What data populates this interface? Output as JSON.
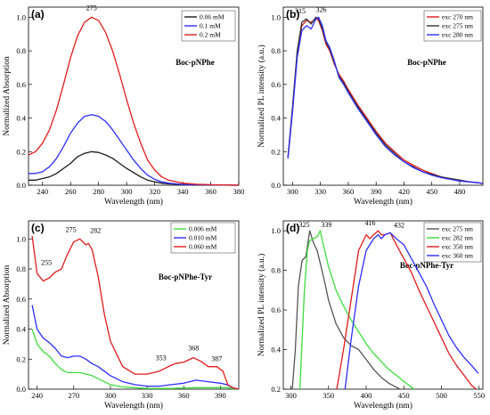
{
  "colors": {
    "black": "#1a1a1a",
    "blue": "#2d2dff",
    "red": "#e21b1b",
    "green": "#3ddc3d",
    "gray": "#555555"
  },
  "chart_data": [
    {
      "id": "a",
      "type": "line",
      "letter": "(a)",
      "sample": "Boc-pNPhe",
      "xlabel": "Wavelength (nm)",
      "ylabel": "Normalized Absorption",
      "xlim": [
        230,
        380
      ],
      "ylim": [
        0,
        1.06
      ],
      "xticks": [
        240,
        260,
        280,
        300,
        320,
        340,
        360,
        380
      ],
      "yticks": [
        0.0,
        0.2,
        0.4,
        0.6,
        0.8,
        1.0
      ],
      "legend_position": "top-right",
      "annotations": [
        {
          "text": "275",
          "x": 275,
          "y": 1.0
        }
      ],
      "series": [
        {
          "name": "0.06 mM",
          "color": "#1a1a1a",
          "x": [
            230,
            235,
            240,
            245,
            250,
            255,
            260,
            265,
            270,
            275,
            280,
            285,
            290,
            295,
            300,
            305,
            310,
            315,
            320,
            325,
            330,
            340,
            350,
            360,
            370,
            380
          ],
          "y": [
            0.03,
            0.03,
            0.04,
            0.05,
            0.07,
            0.1,
            0.13,
            0.17,
            0.19,
            0.2,
            0.195,
            0.18,
            0.16,
            0.13,
            0.1,
            0.075,
            0.05,
            0.03,
            0.02,
            0.012,
            0.008,
            0.004,
            0.002,
            0.001,
            0.001,
            0.0
          ]
        },
        {
          "name": "0.1 mM",
          "color": "#2d2dff",
          "x": [
            230,
            235,
            240,
            245,
            250,
            255,
            260,
            265,
            270,
            275,
            280,
            285,
            290,
            295,
            300,
            305,
            310,
            315,
            320,
            325,
            330,
            340,
            350,
            360,
            370,
            380
          ],
          "y": [
            0.07,
            0.07,
            0.08,
            0.11,
            0.16,
            0.23,
            0.31,
            0.37,
            0.41,
            0.42,
            0.41,
            0.38,
            0.33,
            0.27,
            0.21,
            0.15,
            0.1,
            0.06,
            0.035,
            0.02,
            0.012,
            0.005,
            0.003,
            0.002,
            0.001,
            0.0
          ]
        },
        {
          "name": "0.2 mM",
          "color": "#e21b1b",
          "x": [
            230,
            235,
            240,
            245,
            250,
            255,
            260,
            265,
            270,
            275,
            280,
            285,
            290,
            295,
            300,
            305,
            310,
            315,
            320,
            325,
            330,
            340,
            350,
            360,
            370,
            380
          ],
          "y": [
            0.18,
            0.2,
            0.25,
            0.33,
            0.45,
            0.6,
            0.76,
            0.89,
            0.97,
            1.0,
            0.98,
            0.91,
            0.8,
            0.66,
            0.51,
            0.37,
            0.25,
            0.15,
            0.09,
            0.05,
            0.03,
            0.012,
            0.006,
            0.003,
            0.001,
            0.0
          ]
        }
      ]
    },
    {
      "id": "b",
      "type": "line",
      "letter": "(b)",
      "sample": "Boc-pNPhe",
      "xlabel": "Wavelength (nm)",
      "ylabel": "Normalized PL intensity (a.u.)",
      "xlim": [
        290,
        505
      ],
      "ylim": [
        0,
        1.06
      ],
      "xticks": [
        300,
        330,
        360,
        390,
        420,
        450,
        480
      ],
      "yticks": [
        0.0,
        0.2,
        0.4,
        0.6,
        0.8,
        1.0
      ],
      "legend_position": "top-right",
      "annotations": [
        {
          "text": "315",
          "x": 315,
          "y": 0.99
        },
        {
          "text": "326",
          "x": 326,
          "y": 1.0
        }
      ],
      "series": [
        {
          "name": "exc 270 nm",
          "color": "#e21b1b",
          "x": [
            295,
            300,
            305,
            310,
            315,
            320,
            325,
            328,
            332,
            336,
            340,
            345,
            350,
            355,
            360,
            370,
            380,
            390,
            400,
            410,
            420,
            430,
            440,
            450,
            460,
            470,
            480,
            490,
            500,
            505
          ],
          "y": [
            0.16,
            0.45,
            0.78,
            0.95,
            0.98,
            0.97,
            0.99,
            0.98,
            0.92,
            0.84,
            0.8,
            0.72,
            0.66,
            0.62,
            0.57,
            0.48,
            0.4,
            0.32,
            0.25,
            0.2,
            0.15,
            0.12,
            0.09,
            0.07,
            0.05,
            0.04,
            0.03,
            0.02,
            0.015,
            0.01
          ]
        },
        {
          "name": "exc 275 nm",
          "color": "#333333",
          "x": [
            295,
            300,
            305,
            310,
            315,
            320,
            325,
            328,
            332,
            336,
            340,
            345,
            350,
            355,
            360,
            370,
            380,
            390,
            400,
            410,
            420,
            430,
            440,
            450,
            460,
            470,
            480,
            490,
            500,
            505
          ],
          "y": [
            0.17,
            0.47,
            0.8,
            0.97,
            0.99,
            0.96,
            1.0,
            0.99,
            0.93,
            0.85,
            0.81,
            0.73,
            0.65,
            0.61,
            0.56,
            0.47,
            0.39,
            0.31,
            0.24,
            0.19,
            0.14,
            0.11,
            0.08,
            0.065,
            0.05,
            0.04,
            0.03,
            0.02,
            0.015,
            0.01
          ]
        },
        {
          "name": "exc 280 nm",
          "color": "#2d2dff",
          "x": [
            295,
            300,
            305,
            310,
            315,
            320,
            325,
            328,
            332,
            336,
            340,
            345,
            350,
            355,
            360,
            370,
            380,
            390,
            400,
            410,
            420,
            430,
            440,
            450,
            460,
            470,
            480,
            490,
            500,
            505
          ],
          "y": [
            0.16,
            0.44,
            0.76,
            0.92,
            0.95,
            0.93,
            0.99,
            1.0,
            0.95,
            0.86,
            0.82,
            0.74,
            0.64,
            0.6,
            0.55,
            0.46,
            0.38,
            0.3,
            0.23,
            0.18,
            0.14,
            0.105,
            0.08,
            0.06,
            0.045,
            0.035,
            0.025,
            0.02,
            0.015,
            0.01
          ]
        }
      ]
    },
    {
      "id": "c",
      "type": "line",
      "letter": "(c)",
      "sample": "Boc-pNPhe-Tyr",
      "xlabel": "Wavelength (nm)",
      "ylabel": "Normalized Absorption",
      "xlim": [
        233,
        405
      ],
      "ylim": [
        0,
        1.12
      ],
      "xticks": [
        240,
        270,
        300,
        330,
        360,
        390
      ],
      "yticks": [
        0.0,
        0.2,
        0.4,
        0.6,
        0.8,
        1.0
      ],
      "legend_position": "top-right",
      "annotations": [
        {
          "text": "255",
          "x": 255,
          "y": 0.78
        },
        {
          "text": "275",
          "x": 275,
          "y": 1.0
        },
        {
          "text": "282",
          "x": 282,
          "y": 0.97
        },
        {
          "text": "353",
          "x": 353,
          "y": 0.17
        },
        {
          "text": "368",
          "x": 368,
          "y": 0.21
        },
        {
          "text": "387",
          "x": 387,
          "y": 0.15
        }
      ],
      "series": [
        {
          "name": "0.006 mM",
          "color": "#3ddc3d",
          "x": [
            236,
            240,
            245,
            250,
            255,
            260,
            265,
            270,
            275,
            280,
            285,
            290,
            295,
            300,
            310,
            320,
            330,
            340,
            350,
            360,
            370,
            380,
            390,
            395,
            400,
            405
          ],
          "y": [
            0.4,
            0.3,
            0.25,
            0.22,
            0.17,
            0.13,
            0.11,
            0.11,
            0.11,
            0.1,
            0.09,
            0.07,
            0.05,
            0.03,
            0.015,
            0.01,
            0.005,
            0.005,
            0.005,
            0.008,
            0.01,
            0.01,
            0.01,
            0.01,
            0.005,
            0.0
          ]
        },
        {
          "name": "0.010 mM",
          "color": "#2d2dff",
          "x": [
            236,
            240,
            245,
            250,
            255,
            260,
            265,
            270,
            275,
            280,
            285,
            290,
            295,
            300,
            310,
            320,
            330,
            340,
            350,
            360,
            370,
            380,
            390,
            395,
            400,
            405
          ],
          "y": [
            0.56,
            0.4,
            0.34,
            0.31,
            0.27,
            0.22,
            0.21,
            0.22,
            0.22,
            0.2,
            0.17,
            0.15,
            0.12,
            0.09,
            0.05,
            0.03,
            0.02,
            0.02,
            0.03,
            0.04,
            0.06,
            0.05,
            0.04,
            0.03,
            0.01,
            0.0
          ]
        },
        {
          "name": "0.060 mM",
          "color": "#e21b1b",
          "x": [
            236,
            240,
            245,
            250,
            255,
            260,
            265,
            270,
            275,
            280,
            282,
            285,
            290,
            295,
            300,
            310,
            320,
            330,
            340,
            350,
            353,
            360,
            368,
            375,
            380,
            387,
            392,
            396,
            400,
            405
          ],
          "y": [
            1.02,
            0.77,
            0.72,
            0.74,
            0.78,
            0.8,
            0.9,
            0.98,
            1.0,
            0.96,
            0.97,
            0.93,
            0.75,
            0.5,
            0.32,
            0.15,
            0.1,
            0.1,
            0.12,
            0.16,
            0.17,
            0.18,
            0.21,
            0.18,
            0.15,
            0.15,
            0.12,
            0.03,
            0.01,
            0.0
          ]
        }
      ]
    },
    {
      "id": "d",
      "type": "line",
      "letter": "(d)",
      "sample": "Boc-pNPhe-Tyr",
      "xlabel": "Wavelength (nm)",
      "ylabel": "Normalized PL intensity (a.u.)",
      "xlim": [
        290,
        555
      ],
      "ylim": [
        0.2,
        1.05
      ],
      "xticks": [
        300,
        350,
        400,
        450,
        500,
        550
      ],
      "yticks": [
        0.2,
        0.4,
        0.6,
        0.8,
        1.0
      ],
      "legend_position": "top-right",
      "annotations": [
        {
          "text": "325",
          "x": 325,
          "y": 1.0
        },
        {
          "text": "339",
          "x": 339,
          "y": 1.0
        },
        {
          "text": "416",
          "x": 416,
          "y": 1.0
        },
        {
          "text": "432",
          "x": 432,
          "y": 0.99
        }
      ],
      "series": [
        {
          "name": "exc 275 nm",
          "color": "#555555",
          "x": [
            302,
            306,
            310,
            315,
            320,
            325,
            330,
            335,
            340,
            345,
            350,
            360,
            370,
            380,
            390,
            400,
            410,
            420,
            430,
            440,
            445
          ],
          "y": [
            0.2,
            0.4,
            0.72,
            0.85,
            0.87,
            1.0,
            0.94,
            0.9,
            0.82,
            0.74,
            0.65,
            0.53,
            0.46,
            0.42,
            0.4,
            0.35,
            0.3,
            0.26,
            0.23,
            0.21,
            0.2
          ]
        },
        {
          "name": "exc 282 nm",
          "color": "#3ddc3d",
          "x": [
            312,
            318,
            322,
            325,
            330,
            335,
            339,
            345,
            350,
            360,
            370,
            380,
            390,
            400,
            410,
            420,
            430,
            440,
            450,
            460,
            464
          ],
          "y": [
            0.2,
            0.7,
            0.9,
            0.95,
            0.96,
            0.97,
            1.0,
            0.9,
            0.82,
            0.7,
            0.62,
            0.55,
            0.49,
            0.43,
            0.38,
            0.34,
            0.3,
            0.27,
            0.24,
            0.21,
            0.2
          ]
        },
        {
          "name": "exc 350 nm",
          "color": "#e21b1b",
          "x": [
            361,
            370,
            380,
            390,
            400,
            405,
            410,
            416,
            420,
            425,
            432,
            440,
            450,
            460,
            470,
            480,
            490,
            500,
            510,
            520,
            530,
            540,
            546
          ],
          "y": [
            0.2,
            0.4,
            0.65,
            0.9,
            0.98,
            0.96,
            0.98,
            1.0,
            0.98,
            0.98,
            0.99,
            0.93,
            0.86,
            0.79,
            0.7,
            0.62,
            0.54,
            0.46,
            0.38,
            0.32,
            0.27,
            0.22,
            0.2
          ]
        },
        {
          "name": "exc 360 nm",
          "color": "#2d2dff",
          "x": [
            372,
            380,
            390,
            400,
            410,
            416,
            420,
            425,
            432,
            440,
            450,
            460,
            470,
            480,
            490,
            500,
            510,
            520,
            530,
            540,
            549
          ],
          "y": [
            0.2,
            0.45,
            0.72,
            0.9,
            0.96,
            0.98,
            0.96,
            0.98,
            0.99,
            0.96,
            0.93,
            0.86,
            0.79,
            0.72,
            0.63,
            0.55,
            0.47,
            0.41,
            0.36,
            0.32,
            0.28
          ]
        }
      ]
    }
  ]
}
